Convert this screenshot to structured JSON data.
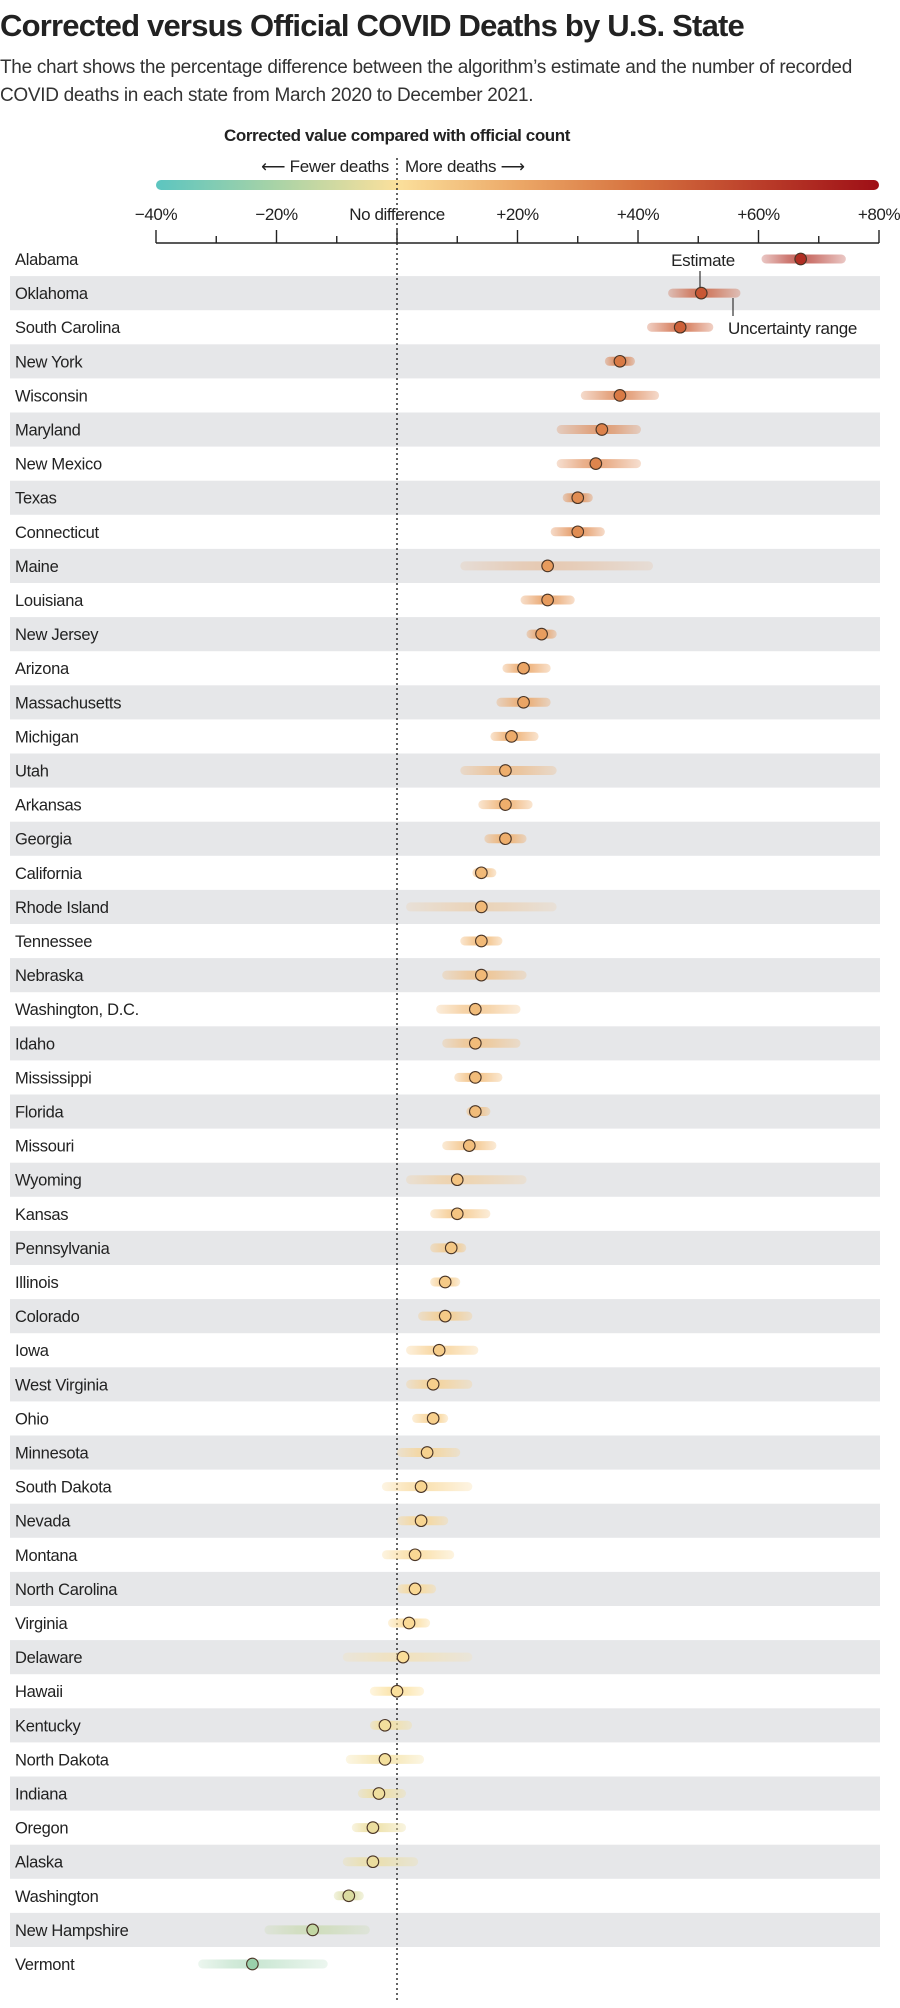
{
  "title": "Corrected versus Official COVID Deaths by U.S. State",
  "subtitle": "The chart shows the percentage difference between the algorithm’s estimate and the number of recorded COVID deaths in each state from March 2020 to December 2021.",
  "legend": {
    "title": "Corrected value compared with official count",
    "fewer": "⟵ Fewer deaths",
    "more": "More deaths ⟶",
    "colors": [
      "#5cc5c0",
      "#a9d3a6",
      "#fbe09c",
      "#eca867",
      "#d6723f",
      "#bb3e2a",
      "#9e0f16"
    ]
  },
  "annotations": {
    "estimate": "Estimate",
    "uncertainty": "Uncertainty range"
  },
  "chart_data": {
    "type": "dot-range",
    "title": "Corrected value compared with official count",
    "xlim": [
      -40,
      80
    ],
    "xticks": [
      -40,
      -30,
      -20,
      -10,
      0,
      10,
      20,
      30,
      40,
      50,
      60,
      70,
      80
    ],
    "xtick_labels": {
      "-40": "−40%",
      "-20": "−20%",
      "0": "No difference",
      "20": "+20%",
      "40": "+40%",
      "60": "+60%",
      "80": "+80%"
    },
    "reference_line": 0,
    "states": [
      {
        "name": "Alabama",
        "estimate": 67,
        "low": 60.5,
        "high": 74.5
      },
      {
        "name": "Oklahoma",
        "estimate": 50.5,
        "low": 45,
        "high": 57
      },
      {
        "name": "South Carolina",
        "estimate": 47,
        "low": 41.5,
        "high": 52.5
      },
      {
        "name": "New York",
        "estimate": 37,
        "low": 34.5,
        "high": 39.5
      },
      {
        "name": "Wisconsin",
        "estimate": 37,
        "low": 30.5,
        "high": 43.5
      },
      {
        "name": "Maryland",
        "estimate": 34,
        "low": 26.5,
        "high": 40.5
      },
      {
        "name": "New Mexico",
        "estimate": 33,
        "low": 26.5,
        "high": 40.5
      },
      {
        "name": "Texas",
        "estimate": 30,
        "low": 27.5,
        "high": 32.5
      },
      {
        "name": "Connecticut",
        "estimate": 30,
        "low": 25.5,
        "high": 34.5
      },
      {
        "name": "Maine",
        "estimate": 25,
        "low": 10.5,
        "high": 42.5
      },
      {
        "name": "Louisiana",
        "estimate": 25,
        "low": 20.5,
        "high": 29.5
      },
      {
        "name": "New Jersey",
        "estimate": 24,
        "low": 21.5,
        "high": 26.5
      },
      {
        "name": "Arizona",
        "estimate": 21,
        "low": 17.5,
        "high": 25.5
      },
      {
        "name": "Massachusetts",
        "estimate": 21,
        "low": 16.5,
        "high": 25.5
      },
      {
        "name": "Michigan",
        "estimate": 19,
        "low": 15.5,
        "high": 23.5
      },
      {
        "name": "Utah",
        "estimate": 18,
        "low": 10.5,
        "high": 26.5
      },
      {
        "name": "Arkansas",
        "estimate": 18,
        "low": 13.5,
        "high": 22.5
      },
      {
        "name": "Georgia",
        "estimate": 18,
        "low": 14.5,
        "high": 21.5
      },
      {
        "name": "California",
        "estimate": 14,
        "low": 12.5,
        "high": 16.5
      },
      {
        "name": "Rhode Island",
        "estimate": 14,
        "low": 1.5,
        "high": 26.5
      },
      {
        "name": "Tennessee",
        "estimate": 14,
        "low": 10.5,
        "high": 17.5
      },
      {
        "name": "Nebraska",
        "estimate": 14,
        "low": 7.5,
        "high": 21.5
      },
      {
        "name": "Washington, D.C.",
        "estimate": 13,
        "low": 6.5,
        "high": 20.5
      },
      {
        "name": "Idaho",
        "estimate": 13,
        "low": 7.5,
        "high": 20.5
      },
      {
        "name": "Mississippi",
        "estimate": 13,
        "low": 9.5,
        "high": 17.5
      },
      {
        "name": "Florida",
        "estimate": 13,
        "low": 11.5,
        "high": 15.5
      },
      {
        "name": "Missouri",
        "estimate": 12,
        "low": 7.5,
        "high": 16.5
      },
      {
        "name": "Wyoming",
        "estimate": 10,
        "low": 1.5,
        "high": 21.5
      },
      {
        "name": "Kansas",
        "estimate": 10,
        "low": 5.5,
        "high": 15.5
      },
      {
        "name": "Pennsylvania",
        "estimate": 9,
        "low": 5.5,
        "high": 11.5
      },
      {
        "name": "Illinois",
        "estimate": 8,
        "low": 5.5,
        "high": 10.5
      },
      {
        "name": "Colorado",
        "estimate": 8,
        "low": 3.5,
        "high": 12.5
      },
      {
        "name": "Iowa",
        "estimate": 7,
        "low": 1.5,
        "high": 13.5
      },
      {
        "name": "West Virginia",
        "estimate": 6,
        "low": 1.5,
        "high": 12.5
      },
      {
        "name": "Ohio",
        "estimate": 6,
        "low": 2.5,
        "high": 8.5
      },
      {
        "name": "Minnesota",
        "estimate": 5,
        "low": 0,
        "high": 10.5
      },
      {
        "name": "South Dakota",
        "estimate": 4,
        "low": -2.5,
        "high": 12.5
      },
      {
        "name": "Nevada",
        "estimate": 4,
        "low": 0,
        "high": 8.5
      },
      {
        "name": "Montana",
        "estimate": 3,
        "low": -2.5,
        "high": 9.5
      },
      {
        "name": "North Carolina",
        "estimate": 3,
        "low": 0,
        "high": 6.5
      },
      {
        "name": "Virginia",
        "estimate": 2,
        "low": -1.5,
        "high": 5.5
      },
      {
        "name": "Delaware",
        "estimate": 1,
        "low": -9,
        "high": 12.5
      },
      {
        "name": "Hawaii",
        "estimate": 0,
        "low": -4.5,
        "high": 4.5
      },
      {
        "name": "Kentucky",
        "estimate": -2,
        "low": -4.5,
        "high": 2.5
      },
      {
        "name": "North Dakota",
        "estimate": -2,
        "low": -8.5,
        "high": 4.5
      },
      {
        "name": "Indiana",
        "estimate": -3,
        "low": -6.5,
        "high": 1.5
      },
      {
        "name": "Oregon",
        "estimate": -4,
        "low": -7.5,
        "high": 1.5
      },
      {
        "name": "Alaska",
        "estimate": -4,
        "low": -9,
        "high": 3.5
      },
      {
        "name": "Washington",
        "estimate": -8,
        "low": -10.5,
        "high": -5.5
      },
      {
        "name": "New Hampshire",
        "estimate": -14,
        "low": -22,
        "high": -4.5
      },
      {
        "name": "Vermont",
        "estimate": -24,
        "low": -33,
        "high": -11.5
      }
    ]
  }
}
